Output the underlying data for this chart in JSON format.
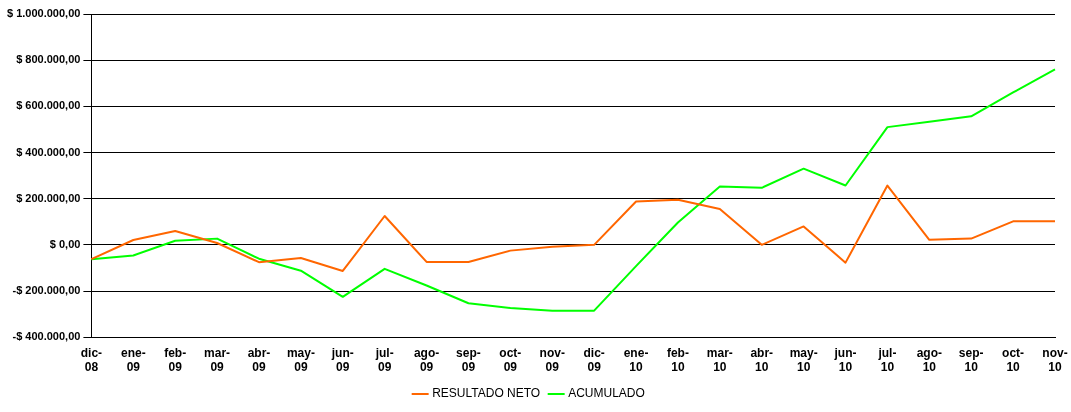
{
  "chart_data": {
    "type": "line",
    "categories": [
      "dic-08",
      "ene-09",
      "feb-09",
      "mar-09",
      "abr-09",
      "may-09",
      "jun-09",
      "jul-09",
      "ago-09",
      "sep-09",
      "oct-09",
      "nov-09",
      "dic-09",
      "ene-10",
      "feb-10",
      "mar-10",
      "abr-10",
      "may-10",
      "jun-10",
      "jul-10",
      "ago-10",
      "sep-10",
      "oct-10",
      "nov-10"
    ],
    "series": [
      {
        "name": "RESULTADO NETO",
        "color": "#ff6600",
        "values": [
          -62000,
          21000,
          60000,
          8000,
          -75000,
          -57000,
          -113000,
          125000,
          -74000,
          -74000,
          -25000,
          -8000,
          0,
          188000,
          195000,
          155000,
          0,
          80000,
          -77000,
          257000,
          22000,
          27000,
          102000,
          102000
        ]
      },
      {
        "name": "ACUMULADO",
        "color": "#00ff00",
        "values": [
          -62000,
          -46000,
          18000,
          27000,
          -60000,
          -112000,
          -225000,
          -104000,
          -176000,
          -253000,
          -274000,
          -285000,
          -285000,
          -92000,
          97000,
          253000,
          247000,
          330000,
          257000,
          510000,
          533000,
          557000,
          660000,
          760000
        ]
      }
    ],
    "ylim": [
      -400000,
      1000000
    ],
    "yticks": [
      {
        "value": -400000,
        "label": "-$ 400.000,00"
      },
      {
        "value": -200000,
        "label": "-$ 200.000,00"
      },
      {
        "value": 0,
        "label": "$ 0,00"
      },
      {
        "value": 200000,
        "label": "$ 200.000,00"
      },
      {
        "value": 400000,
        "label": "$ 400.000,00"
      },
      {
        "value": 600000,
        "label": "$ 600.000,00"
      },
      {
        "value": 800000,
        "label": "$ 800.000,00"
      },
      {
        "value": 1000000,
        "label": "$ 1.000.000,00"
      }
    ],
    "grid": "y",
    "legend": "bottom",
    "marker": "none",
    "line_style": "solid"
  }
}
